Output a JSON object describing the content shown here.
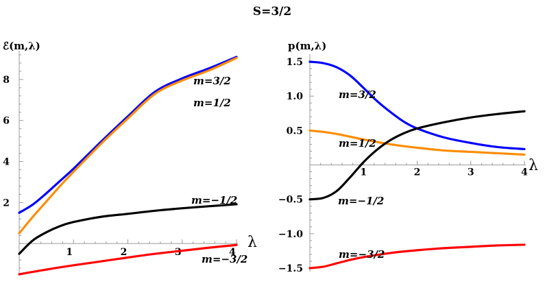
{
  "title": "S=3/2",
  "chart_data": [
    {
      "type": "line",
      "ylabel": "ℰ(m,λ)",
      "xlabel": "λ",
      "xlim": [
        0,
        4
      ],
      "ylim": [
        -1.5,
        9.2
      ],
      "xticks": [
        1,
        2,
        3,
        4
      ],
      "yticks": [
        2,
        4,
        6,
        8
      ],
      "grid": false,
      "series": [
        {
          "name": "m=3/2",
          "color": "#0000ff",
          "x": [
            0,
            0.25,
            0.5,
            0.75,
            1,
            1.5,
            2,
            2.5,
            3,
            3.5,
            4
          ],
          "y": [
            1.5,
            1.9,
            2.45,
            3.05,
            3.65,
            4.95,
            6.2,
            7.4,
            8.05,
            8.55,
            9.1
          ]
        },
        {
          "name": "m=1/2",
          "color": "#ff8c00",
          "x": [
            0,
            0.25,
            0.5,
            0.75,
            1,
            1.5,
            2,
            2.5,
            3,
            3.5,
            4
          ],
          "y": [
            0.5,
            1.3,
            2.05,
            2.8,
            3.5,
            4.85,
            6.1,
            7.3,
            7.95,
            8.45,
            9.05
          ]
        },
        {
          "name": "m=−1/2",
          "color": "#000000",
          "x": [
            0,
            0.25,
            0.5,
            0.75,
            1,
            1.5,
            2,
            2.5,
            3,
            3.5,
            4
          ],
          "y": [
            -0.5,
            0.15,
            0.55,
            0.85,
            1.05,
            1.3,
            1.45,
            1.6,
            1.72,
            1.82,
            1.92
          ]
        },
        {
          "name": "m=−3/2",
          "color": "#ff0000",
          "x": [
            0,
            0.25,
            0.5,
            0.75,
            1,
            1.5,
            2,
            2.5,
            3,
            3.5,
            4
          ],
          "y": [
            -1.5,
            -1.38,
            -1.27,
            -1.16,
            -1.06,
            -0.87,
            -0.68,
            -0.5,
            -0.35,
            -0.2,
            -0.07
          ]
        }
      ],
      "annotations": [
        {
          "text": "m=3/2",
          "series": 0
        },
        {
          "text": "m=1/2",
          "series": 1
        },
        {
          "text": "m=−1/2",
          "series": 2
        },
        {
          "text": "m=−3/2",
          "series": 3
        }
      ]
    },
    {
      "type": "line",
      "ylabel": "p(m,λ)",
      "xlabel": "λ",
      "xlim": [
        0,
        4
      ],
      "ylim": [
        -1.55,
        1.55
      ],
      "xticks": [
        1,
        2,
        3,
        4
      ],
      "yticks": [
        -1.5,
        -1.0,
        -0.5,
        0.5,
        1.0,
        1.5
      ],
      "ytick_labels": [
        "−1.5",
        "−1.0",
        "−0.5",
        "0.5",
        "1.0",
        "1.5"
      ],
      "grid": false,
      "series": [
        {
          "name": "m=3/2",
          "color": "#0000ff",
          "x": [
            0,
            0.25,
            0.5,
            0.75,
            1,
            1.25,
            1.5,
            1.75,
            2,
            2.5,
            3,
            3.5,
            4
          ],
          "y": [
            1.5,
            1.48,
            1.42,
            1.3,
            1.12,
            0.93,
            0.77,
            0.63,
            0.53,
            0.4,
            0.32,
            0.26,
            0.23
          ]
        },
        {
          "name": "m=1/2",
          "color": "#ff8c00",
          "x": [
            0,
            0.25,
            0.5,
            0.75,
            1,
            1.5,
            2,
            2.5,
            3,
            3.5,
            4
          ],
          "y": [
            0.5,
            0.48,
            0.45,
            0.41,
            0.37,
            0.3,
            0.25,
            0.21,
            0.19,
            0.17,
            0.15
          ]
        },
        {
          "name": "m=−1/2",
          "color": "#000000",
          "x": [
            0,
            0.25,
            0.5,
            0.75,
            1,
            1.25,
            1.5,
            1.75,
            2,
            2.5,
            3,
            3.5,
            4
          ],
          "y": [
            -0.5,
            -0.48,
            -0.38,
            -0.18,
            0.04,
            0.22,
            0.36,
            0.46,
            0.53,
            0.62,
            0.69,
            0.74,
            0.78
          ]
        },
        {
          "name": "m=−3/2",
          "color": "#ff0000",
          "x": [
            0,
            0.25,
            0.5,
            0.75,
            1,
            1.5,
            2,
            2.5,
            3,
            3.5,
            4
          ],
          "y": [
            -1.5,
            -1.48,
            -1.43,
            -1.38,
            -1.34,
            -1.28,
            -1.24,
            -1.21,
            -1.19,
            -1.17,
            -1.16
          ]
        }
      ],
      "annotations": [
        {
          "text": "m=3/2",
          "series": 0
        },
        {
          "text": "m=1/2",
          "series": 1
        },
        {
          "text": "m=−1/2",
          "series": 2
        },
        {
          "text": "m=−3/2",
          "series": 3
        }
      ]
    }
  ]
}
